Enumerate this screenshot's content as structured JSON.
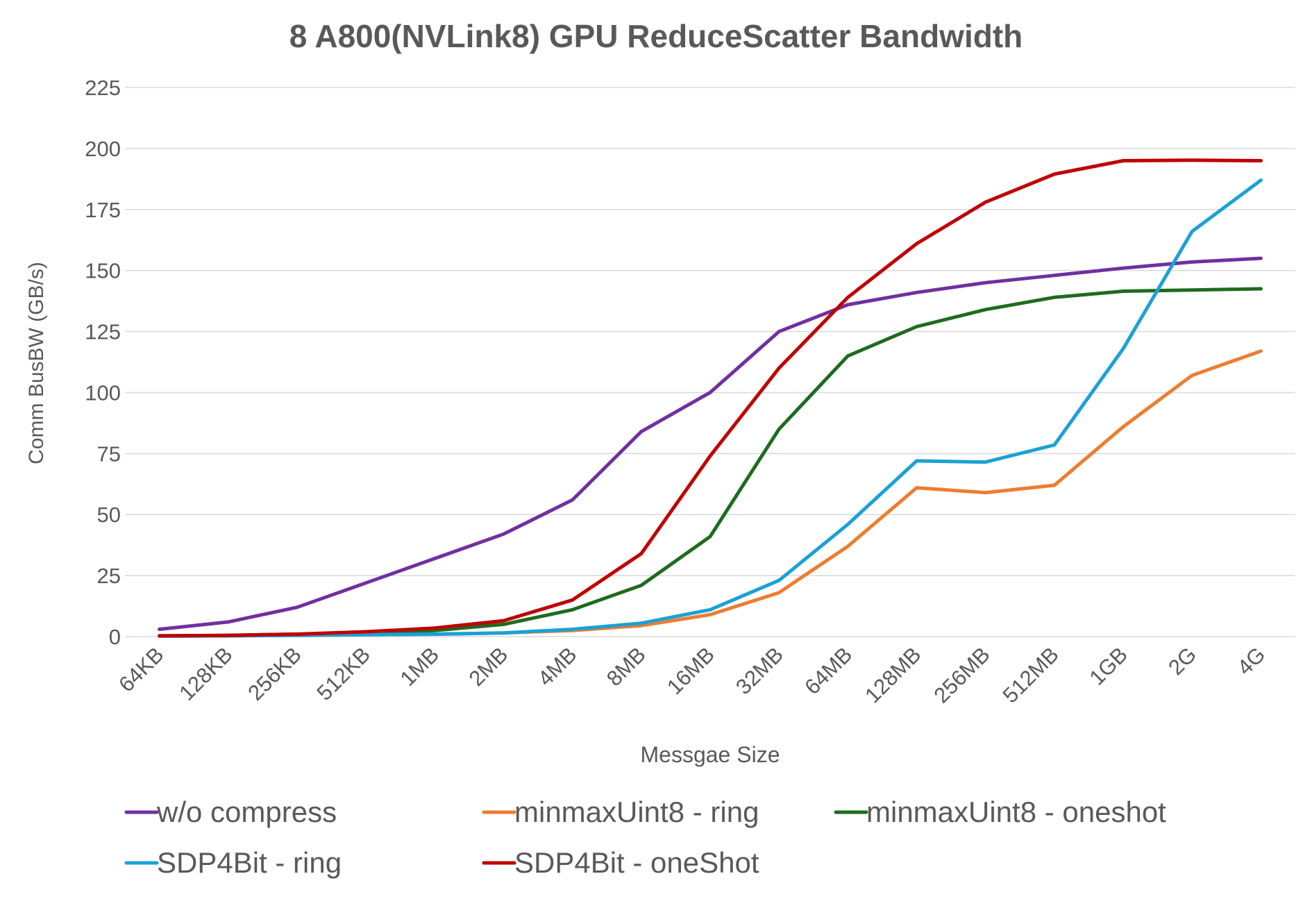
{
  "chart_data": {
    "type": "line",
    "title": "8 A800(NVLink8) GPU ReduceScatter Bandwidth",
    "xlabel": "Messgae Size",
    "ylabel": "Comm BusBW (GB/s)",
    "ylim": [
      0,
      225
    ],
    "yticks": [
      0,
      25,
      50,
      75,
      100,
      125,
      150,
      175,
      200,
      225
    ],
    "grid": true,
    "legend_position": "bottom",
    "categories": [
      "64KB",
      "128KB",
      "256KB",
      "512KB",
      "1MB",
      "2MB",
      "4MB",
      "8MB",
      "16MB",
      "32MB",
      "64MB",
      "128MB",
      "256MB",
      "512MB",
      "1GB",
      "2G",
      "4G"
    ],
    "series": [
      {
        "name": "w/o compress",
        "color": "#7030a0",
        "values": [
          3,
          6,
          12,
          22,
          32,
          42,
          56,
          84,
          100,
          125,
          136,
          141,
          145,
          148,
          151,
          153.5,
          155
        ]
      },
      {
        "name": "minmaxUint8 - ring",
        "color": "#ed7d31",
        "values": [
          0.2,
          0.3,
          0.5,
          0.8,
          1,
          1.5,
          2.5,
          4.5,
          9,
          18,
          37,
          61,
          59,
          62,
          86,
          107,
          117
        ]
      },
      {
        "name": "minmaxUint8 - oneshot",
        "color": "#1e6b1e",
        "values": [
          0.3,
          0.5,
          1,
          1.5,
          2.5,
          5,
          11,
          21,
          41,
          85,
          115,
          127,
          134,
          139,
          141.5,
          142,
          142.5
        ]
      },
      {
        "name": "SDP4Bit - ring",
        "color": "#1ba1d6",
        "values": [
          0.2,
          0.3,
          0.5,
          0.8,
          1,
          1.5,
          3,
          5.5,
          11,
          23,
          46,
          72,
          71.5,
          78.5,
          118,
          166,
          187
        ]
      },
      {
        "name": "SDP4Bit - oneShot",
        "color": "#c00000",
        "values": [
          0.3,
          0.5,
          1,
          2,
          3.5,
          6.5,
          15,
          34,
          74,
          110,
          139,
          161,
          178,
          189.5,
          195,
          195.2,
          195
        ]
      }
    ]
  }
}
